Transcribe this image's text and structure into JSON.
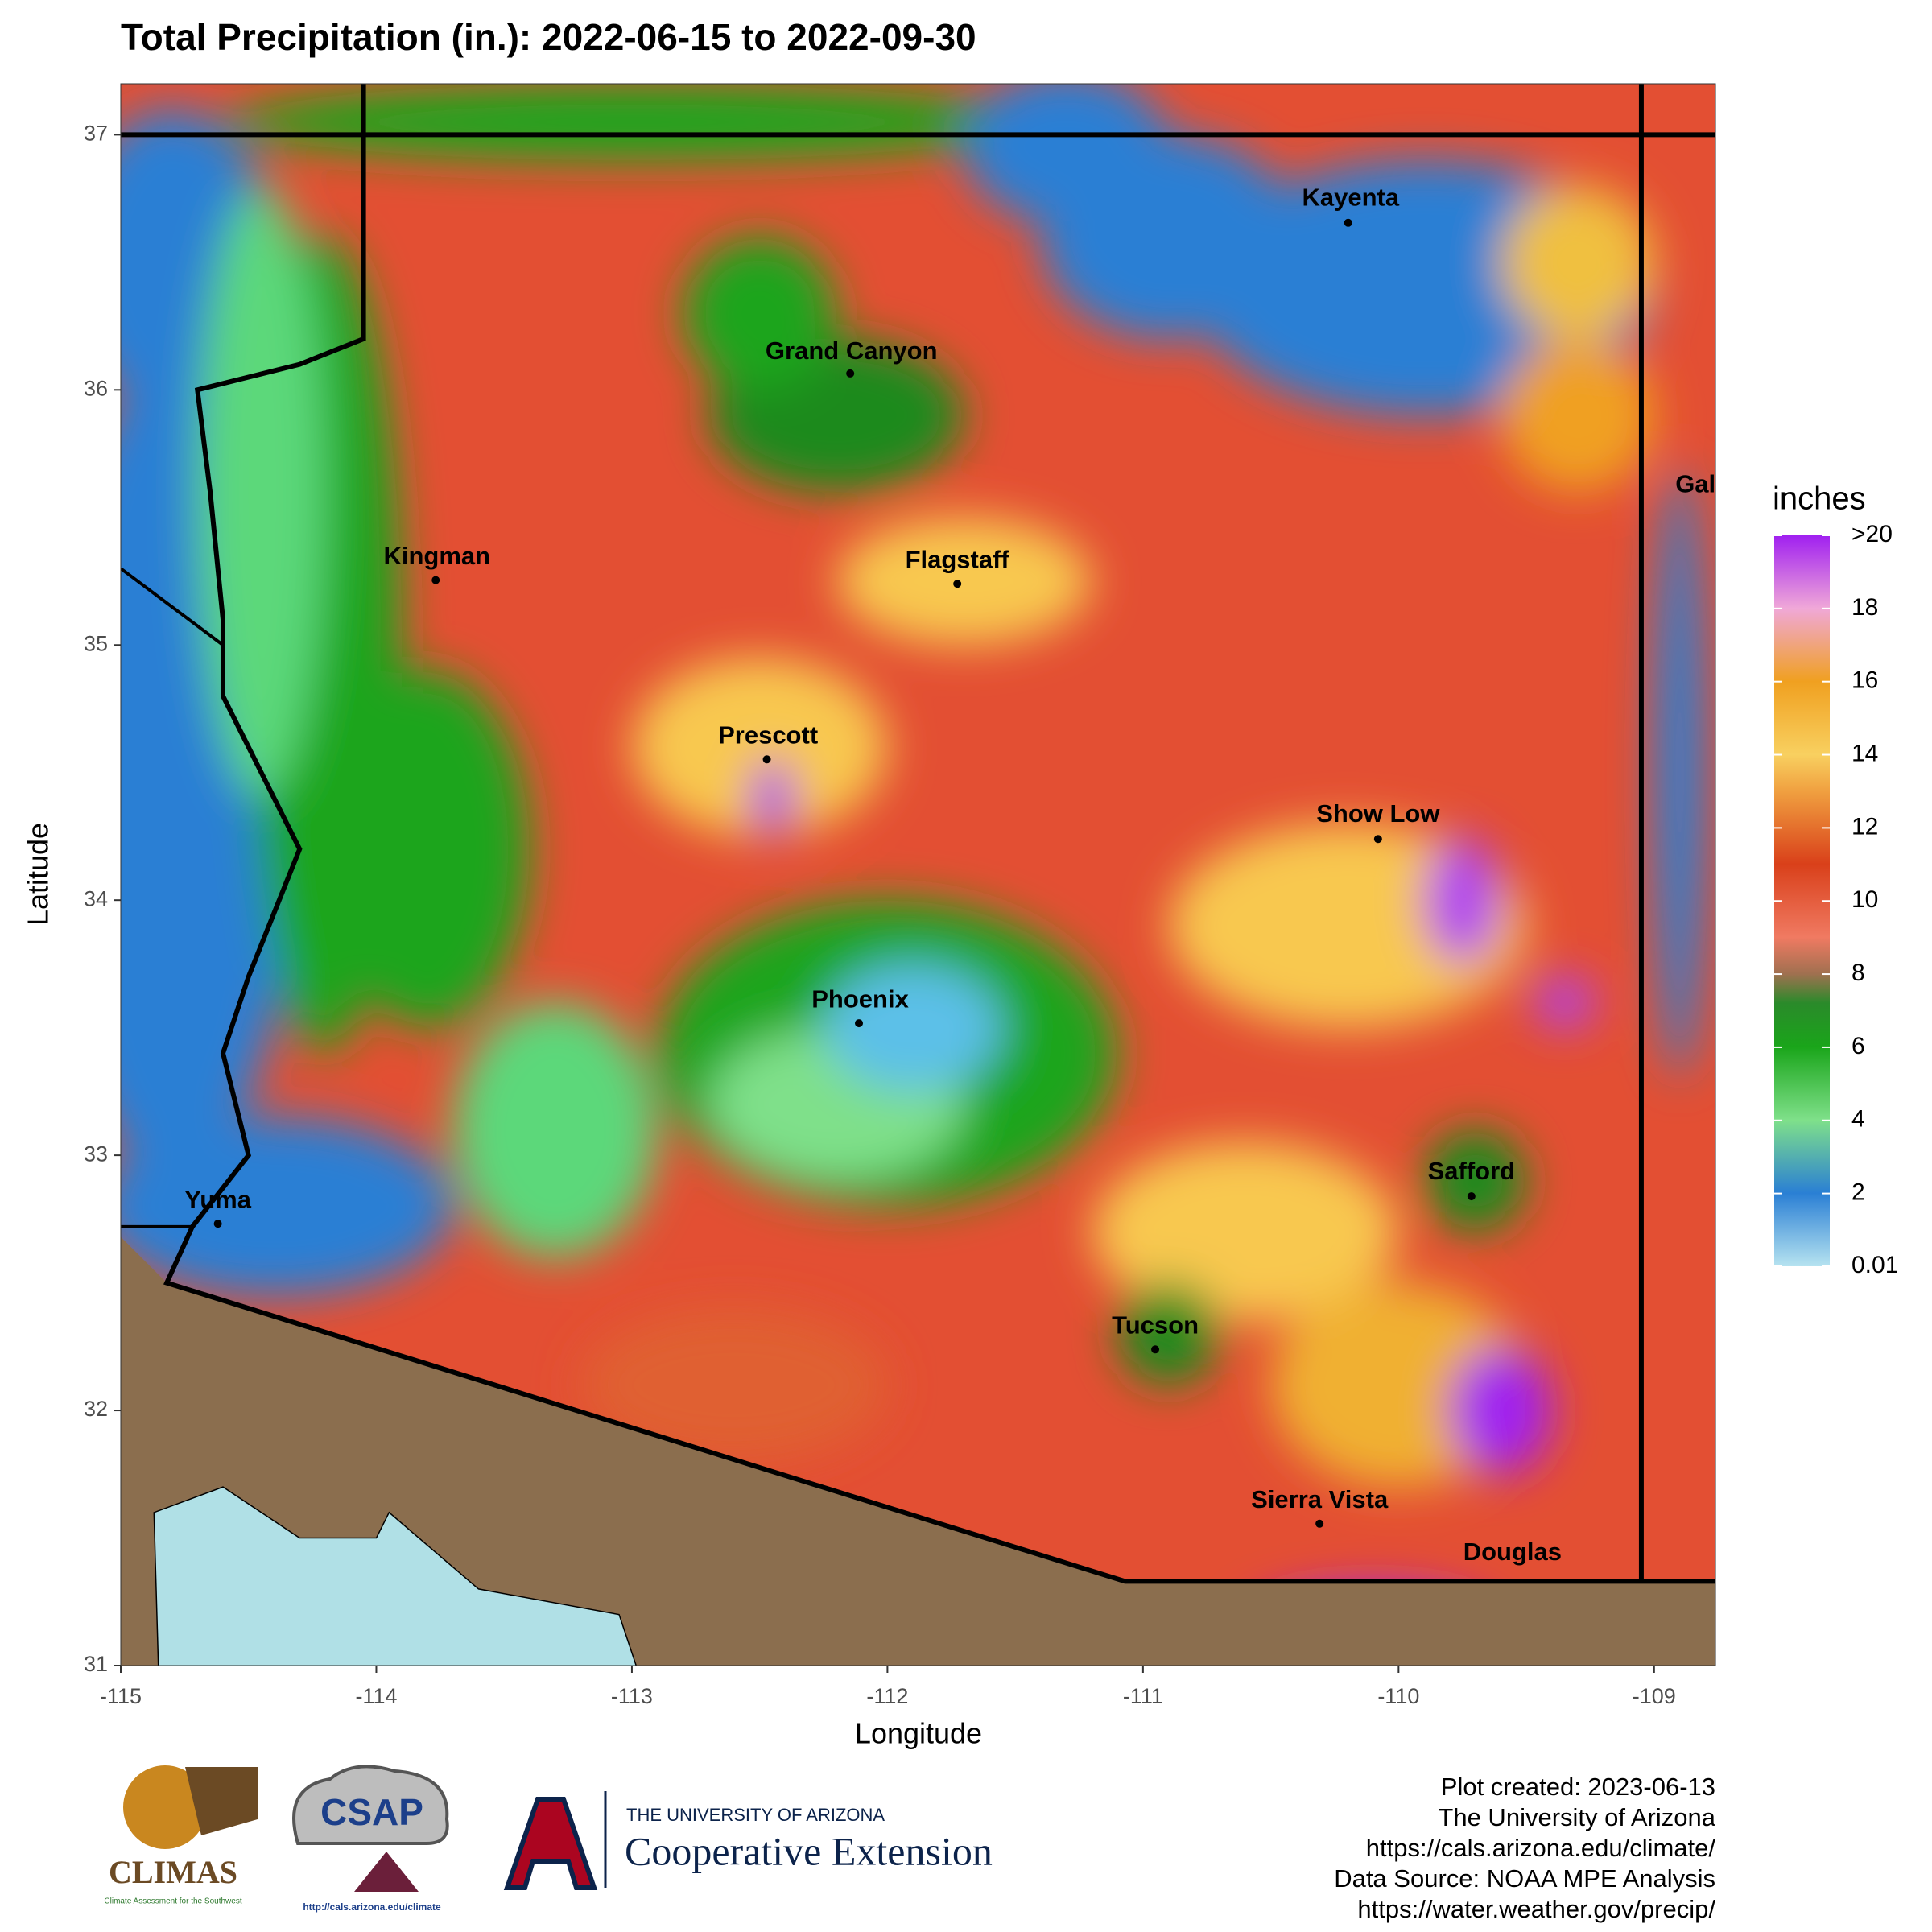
{
  "chart_data": {
    "type": "map",
    "title": "Total Precipitation (in.): 2022-06-15 to 2022-09-30",
    "x_label": "Longitude",
    "y_label": "Latitude",
    "xlim": [
      -115,
      -108.76
    ],
    "ylim": [
      31,
      37.2
    ],
    "xticks": [
      -115,
      -114,
      -113,
      -112,
      -111,
      -110,
      -109
    ],
    "yticks": [
      31,
      32,
      33,
      34,
      35,
      36,
      37
    ],
    "places": [
      "Kayenta",
      "Grand Canyon",
      "Kingman",
      "Flagstaff",
      "Prescott",
      "Show Low",
      "Phoenix",
      "Safford",
      "Yuma",
      "Tucson",
      "Sierra Vista",
      "Douglas",
      "Gal"
    ],
    "legend": {
      "title": "inches",
      "range": [
        0.01,
        20
      ],
      "ticks": [
        {
          "value": 20,
          "label": ">20"
        },
        18,
        16,
        14,
        12,
        10,
        8,
        6,
        4,
        2,
        0.01
      ]
    },
    "footer": [
      "Plot created: 2023-06-13",
      "The University of Arizona",
      "https://cals.arizona.edu/climate/",
      "Data Source: NOAA MPE Analysis",
      "https://water.weather.gov/precip/"
    ],
    "logos": {
      "climas": "CLIMAS",
      "climas_sub": "Climate Assessment for the Southwest",
      "csap": "CSAP",
      "csap_url": "http://cals.arizona.edu/climate",
      "ua": "THE UNIVERSITY OF ARIZONA",
      "coop": "Cooperative Extension"
    }
  }
}
